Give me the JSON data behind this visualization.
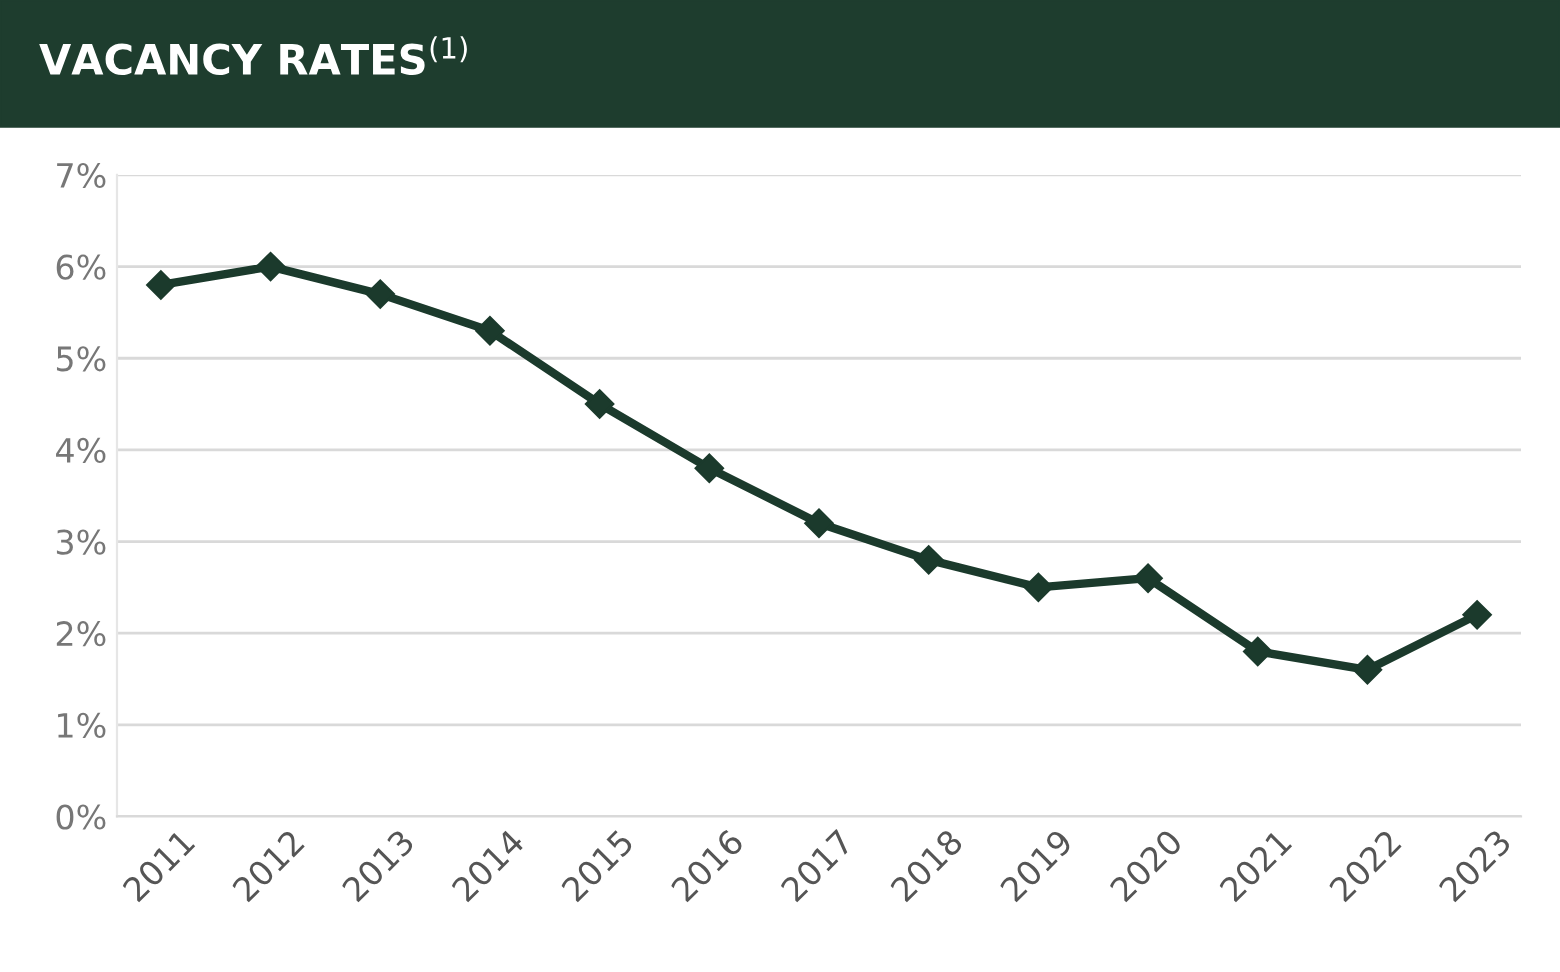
{
  "chart_data": {
    "type": "line",
    "title": "VACANCY RATES$^{(1)}$",
    "categories": [
      "2011",
      "2012",
      "2013",
      "2014",
      "2015",
      "2016",
      "2017",
      "2018",
      "2019",
      "2020",
      "2021",
      "2022",
      "2023"
    ],
    "series": [
      {
        "color": "#1b3a2c",
        "values": [
          5.8,
          6.0,
          5.7,
          5.3,
          4.5,
          3.8,
          3.2,
          2.8,
          2.5,
          2.6,
          1.8,
          1.6,
          2.2
        ]
      }
    ],
    "ylim": [
      0,
      7
    ],
    "yticks": [
      {
        "value": 0,
        "label": "0%"
      },
      {
        "value": 1,
        "label": "1%"
      },
      {
        "value": 2,
        "label": "2%"
      },
      {
        "value": 3,
        "label": "3%"
      },
      {
        "value": 4,
        "label": "4%"
      },
      {
        "value": 5,
        "label": "5%"
      },
      {
        "value": 6,
        "label": "6%"
      },
      {
        "value": 7,
        "label": "7%"
      }
    ],
    "grid": "y",
    "legend": false,
    "marker": "diamond",
    "line_style": "solid"
  }
}
